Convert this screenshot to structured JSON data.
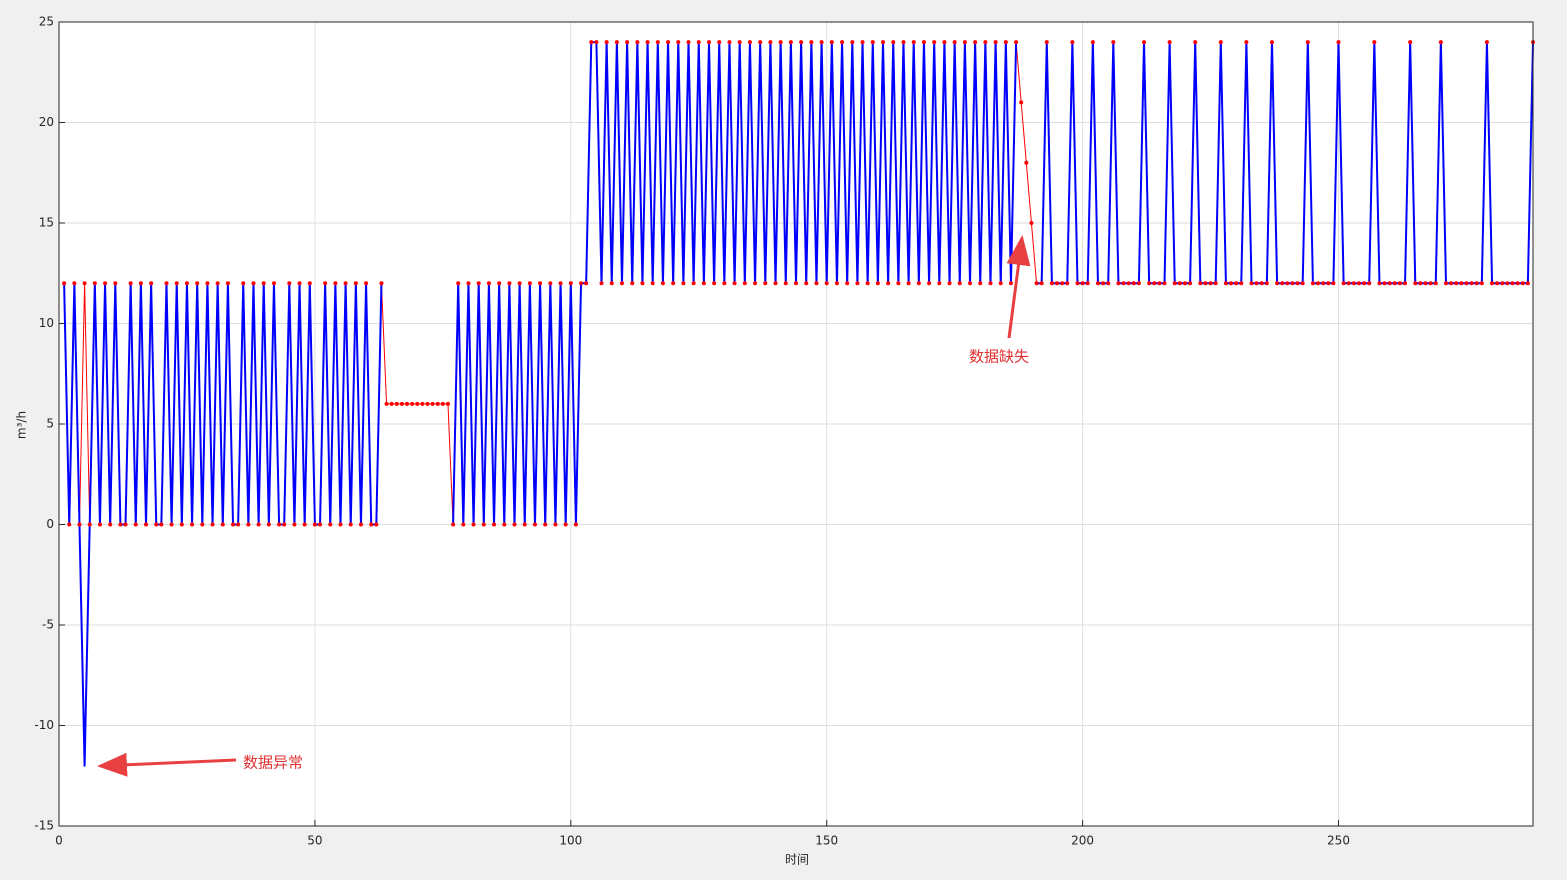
{
  "chart_data": {
    "type": "line",
    "x": [
      1,
      2,
      3,
      4,
      5,
      6,
      7,
      8,
      9,
      10,
      11,
      12,
      13,
      14,
      15,
      16,
      17,
      18,
      19,
      20,
      21,
      22,
      23,
      24,
      25,
      26,
      27,
      28,
      29,
      30,
      31,
      32,
      33,
      34,
      35,
      36,
      37,
      38,
      39,
      40,
      41,
      42,
      43,
      44,
      45,
      46,
      47,
      48,
      49,
      50,
      51,
      52,
      53,
      54,
      55,
      56,
      57,
      58,
      59,
      60,
      61,
      62,
      63,
      64,
      65,
      66,
      67,
      68,
      69,
      70,
      71,
      72,
      73,
      74,
      75,
      76,
      77,
      78,
      79,
      80,
      81,
      82,
      83,
      84,
      85,
      86,
      87,
      88,
      89,
      90,
      91,
      92,
      93,
      94,
      95,
      96,
      97,
      98,
      99,
      100,
      101,
      102,
      103,
      104,
      105,
      106,
      107,
      108,
      109,
      110,
      111,
      112,
      113,
      114,
      115,
      116,
      117,
      118,
      119,
      120,
      121,
      122,
      123,
      124,
      125,
      126,
      127,
      128,
      129,
      130,
      131,
      132,
      133,
      134,
      135,
      136,
      137,
      138,
      139,
      140,
      141,
      142,
      143,
      144,
      145,
      146,
      147,
      148,
      149,
      150,
      151,
      152,
      153,
      154,
      155,
      156,
      157,
      158,
      159,
      160,
      161,
      162,
      163,
      164,
      165,
      166,
      167,
      168,
      169,
      170,
      171,
      172,
      173,
      174,
      175,
      176,
      177,
      178,
      179,
      180,
      181,
      182,
      183,
      184,
      185,
      186,
      187,
      188,
      189,
      190,
      191,
      192,
      193,
      194,
      195,
      196,
      197,
      198,
      199,
      200,
      201,
      202,
      203,
      204,
      205,
      206,
      207,
      208,
      209,
      210,
      211,
      212,
      213,
      214,
      215,
      216,
      217,
      218,
      219,
      220,
      221,
      222,
      223,
      224,
      225,
      226,
      227,
      228,
      229,
      230,
      231,
      232,
      233,
      234,
      235,
      236,
      237,
      238,
      239,
      240,
      241,
      242,
      243,
      244,
      245,
      246,
      247,
      248,
      249,
      250,
      251,
      252,
      253,
      254,
      255,
      256,
      257,
      258,
      259,
      260,
      261,
      262,
      263,
      264,
      265,
      266,
      267,
      268,
      269,
      270,
      271,
      272,
      273,
      274,
      275,
      276,
      277,
      278,
      279,
      280,
      281,
      282,
      283,
      284,
      285,
      286,
      287,
      288
    ],
    "series": [
      {
        "color": "#ff0000",
        "values": [
          12,
          0,
          12,
          0,
          12,
          0,
          12,
          0,
          12,
          0,
          12,
          0,
          0,
          12,
          0,
          12,
          0,
          12,
          0,
          0,
          12,
          0,
          12,
          0,
          12,
          0,
          12,
          0,
          12,
          0,
          12,
          0,
          12,
          0,
          0,
          12,
          0,
          12,
          0,
          12,
          0,
          12,
          0,
          0,
          12,
          0,
          12,
          0,
          12,
          0,
          0,
          12,
          0,
          12,
          0,
          12,
          0,
          12,
          0,
          12,
          0,
          0,
          12,
          6,
          6,
          6,
          6,
          6,
          6,
          6,
          6,
          6,
          6,
          6,
          6,
          6,
          0,
          12,
          0,
          12,
          0,
          12,
          0,
          12,
          0,
          12,
          0,
          12,
          0,
          12,
          0,
          12,
          0,
          12,
          0,
          12,
          0,
          12,
          0,
          12,
          0,
          12,
          12,
          24,
          24,
          12,
          24,
          12,
          24,
          12,
          24,
          12,
          24,
          12,
          24,
          12,
          24,
          12,
          24,
          12,
          24,
          12,
          24,
          12,
          24,
          12,
          24,
          12,
          24,
          12,
          24,
          12,
          24,
          12,
          24,
          12,
          24,
          12,
          24,
          12,
          24,
          12,
          24,
          12,
          24,
          12,
          24,
          12,
          24,
          12,
          24,
          12,
          24,
          12,
          24,
          12,
          24,
          12,
          24,
          12,
          24,
          12,
          24,
          12,
          24,
          12,
          24,
          12,
          24,
          12,
          24,
          12,
          24,
          12,
          24,
          12,
          24,
          12,
          24,
          12,
          24,
          12,
          24,
          12,
          24,
          12,
          24,
          21,
          18,
          15,
          12,
          12,
          24,
          12,
          12,
          12,
          12,
          24,
          12,
          12,
          12,
          24,
          12,
          12,
          12,
          24,
          12,
          12,
          12,
          12,
          12,
          24,
          12,
          12,
          12,
          12,
          24,
          12,
          12,
          12,
          12,
          24,
          12,
          12,
          12,
          12,
          24,
          12,
          12,
          12,
          12,
          24,
          12,
          12,
          12,
          12,
          24,
          12,
          12,
          12,
          12,
          12,
          12,
          24,
          12,
          12,
          12,
          12,
          12,
          24,
          12,
          12,
          12,
          12,
          12,
          12,
          24,
          12,
          12,
          12,
          12,
          12,
          12,
          24,
          12,
          12,
          12,
          12,
          12,
          24,
          12,
          12,
          12,
          12,
          12,
          12,
          12,
          12,
          24,
          12,
          12,
          12,
          12,
          12,
          12,
          12,
          12,
          24
        ]
      },
      {
        "color": "#0000ff",
        "values": [
          12,
          0,
          12,
          0,
          -12,
          0,
          12,
          0,
          12,
          0,
          12,
          0,
          0,
          12,
          0,
          12,
          0,
          12,
          0,
          0,
          12,
          0,
          12,
          0,
          12,
          0,
          12,
          0,
          12,
          0,
          12,
          0,
          12,
          0,
          0,
          12,
          0,
          12,
          0,
          12,
          0,
          12,
          0,
          0,
          12,
          0,
          12,
          0,
          12,
          0,
          0,
          12,
          0,
          12,
          0,
          12,
          0,
          12,
          0,
          12,
          0,
          0,
          12,
          null,
          null,
          null,
          null,
          null,
          null,
          null,
          null,
          null,
          null,
          null,
          null,
          null,
          0,
          12,
          0,
          12,
          0,
          12,
          0,
          12,
          0,
          12,
          0,
          12,
          0,
          12,
          0,
          12,
          0,
          12,
          0,
          12,
          0,
          12,
          0,
          12,
          0,
          12,
          12,
          24,
          24,
          12,
          24,
          12,
          24,
          12,
          24,
          12,
          24,
          12,
          24,
          12,
          24,
          12,
          24,
          12,
          24,
          12,
          24,
          12,
          24,
          12,
          24,
          12,
          24,
          12,
          24,
          12,
          24,
          12,
          24,
          12,
          24,
          12,
          24,
          12,
          24,
          12,
          24,
          12,
          24,
          12,
          24,
          12,
          24,
          12,
          24,
          12,
          24,
          12,
          24,
          12,
          24,
          12,
          24,
          12,
          24,
          12,
          24,
          12,
          24,
          12,
          24,
          12,
          24,
          12,
          24,
          12,
          24,
          12,
          24,
          12,
          24,
          12,
          24,
          12,
          24,
          12,
          24,
          12,
          24,
          12,
          24,
          null,
          null,
          null,
          12,
          12,
          24,
          12,
          12,
          12,
          12,
          24,
          12,
          12,
          12,
          24,
          12,
          12,
          12,
          24,
          12,
          12,
          12,
          12,
          12,
          24,
          12,
          12,
          12,
          12,
          24,
          12,
          12,
          12,
          12,
          24,
          12,
          12,
          12,
          12,
          24,
          12,
          12,
          12,
          12,
          24,
          12,
          12,
          12,
          12,
          24,
          12,
          12,
          12,
          12,
          12,
          12,
          24,
          12,
          12,
          12,
          12,
          12,
          24,
          12,
          12,
          12,
          12,
          12,
          12,
          24,
          12,
          12,
          12,
          12,
          12,
          12,
          24,
          12,
          12,
          12,
          12,
          12,
          24,
          12,
          12,
          12,
          12,
          12,
          12,
          12,
          12,
          24,
          12,
          12,
          12,
          12,
          12,
          12,
          12,
          12,
          24
        ]
      }
    ],
    "xlim": [
      0,
      288
    ],
    "ylim": [
      -15,
      25
    ],
    "xticks": [
      0,
      50,
      100,
      150,
      200,
      250
    ],
    "yticks": [
      -15,
      -10,
      -5,
      0,
      5,
      10,
      15,
      20,
      25
    ],
    "grid": true,
    "x_label": "时间",
    "y_label": "m³/h",
    "annotations": [
      "数据异常",
      "数据缺失"
    ]
  }
}
